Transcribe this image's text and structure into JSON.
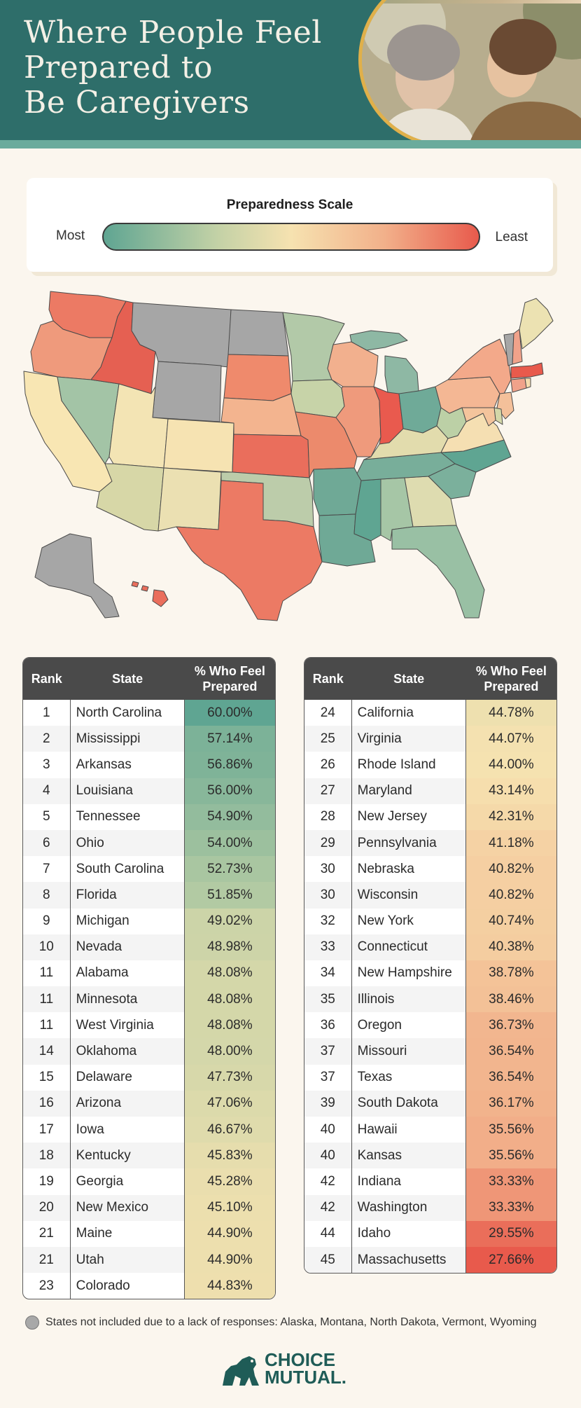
{
  "header": {
    "title_line1": "Where People Feel",
    "title_line2": "Prepared to",
    "title_line3": "Be Caregivers"
  },
  "scale": {
    "title": "Preparedness Scale",
    "most_label": "Most",
    "least_label": "Least"
  },
  "colors": {
    "header_bg": "#2e6e6a",
    "accent": "#6aab9c",
    "scale_most": "#5fa592",
    "scale_mid": "#f6e2b0",
    "scale_least": "#e85a4c",
    "not_included": "#a8a8a8"
  },
  "chart_data": {
    "type": "table",
    "columns": [
      "Rank",
      "State",
      "% Who Feel Prepared"
    ],
    "rows": [
      {
        "rank": "1",
        "state": "North Carolina",
        "pct": "60.00%",
        "value": 60.0
      },
      {
        "rank": "2",
        "state": "Mississippi",
        "pct": "57.14%",
        "value": 57.14
      },
      {
        "rank": "3",
        "state": "Arkansas",
        "pct": "56.86%",
        "value": 56.86
      },
      {
        "rank": "4",
        "state": "Louisiana",
        "pct": "56.00%",
        "value": 56.0
      },
      {
        "rank": "5",
        "state": "Tennessee",
        "pct": "54.90%",
        "value": 54.9
      },
      {
        "rank": "6",
        "state": "Ohio",
        "pct": "54.00%",
        "value": 54.0
      },
      {
        "rank": "7",
        "state": "South Carolina",
        "pct": "52.73%",
        "value": 52.73
      },
      {
        "rank": "8",
        "state": "Florida",
        "pct": "51.85%",
        "value": 51.85
      },
      {
        "rank": "9",
        "state": "Michigan",
        "pct": "49.02%",
        "value": 49.02
      },
      {
        "rank": "10",
        "state": "Nevada",
        "pct": "48.98%",
        "value": 48.98
      },
      {
        "rank": "11",
        "state": "Alabama",
        "pct": "48.08%",
        "value": 48.08
      },
      {
        "rank": "11",
        "state": "Minnesota",
        "pct": "48.08%",
        "value": 48.08
      },
      {
        "rank": "11",
        "state": "West Virginia",
        "pct": "48.08%",
        "value": 48.08
      },
      {
        "rank": "14",
        "state": "Oklahoma",
        "pct": "48.00%",
        "value": 48.0
      },
      {
        "rank": "15",
        "state": "Delaware",
        "pct": "47.73%",
        "value": 47.73
      },
      {
        "rank": "16",
        "state": "Arizona",
        "pct": "47.06%",
        "value": 47.06
      },
      {
        "rank": "17",
        "state": "Iowa",
        "pct": "46.67%",
        "value": 46.67
      },
      {
        "rank": "18",
        "state": "Kentucky",
        "pct": "45.83%",
        "value": 45.83
      },
      {
        "rank": "19",
        "state": "Georgia",
        "pct": "45.28%",
        "value": 45.28
      },
      {
        "rank": "20",
        "state": "New Mexico",
        "pct": "45.10%",
        "value": 45.1
      },
      {
        "rank": "21",
        "state": "Maine",
        "pct": "44.90%",
        "value": 44.9
      },
      {
        "rank": "21",
        "state": "Utah",
        "pct": "44.90%",
        "value": 44.9
      },
      {
        "rank": "23",
        "state": "Colorado",
        "pct": "44.83%",
        "value": 44.83
      },
      {
        "rank": "24",
        "state": "California",
        "pct": "44.78%",
        "value": 44.78
      },
      {
        "rank": "25",
        "state": "Virginia",
        "pct": "44.07%",
        "value": 44.07
      },
      {
        "rank": "26",
        "state": "Rhode Island",
        "pct": "44.00%",
        "value": 44.0
      },
      {
        "rank": "27",
        "state": "Maryland",
        "pct": "43.14%",
        "value": 43.14
      },
      {
        "rank": "28",
        "state": "New Jersey",
        "pct": "42.31%",
        "value": 42.31
      },
      {
        "rank": "29",
        "state": "Pennsylvania",
        "pct": "41.18%",
        "value": 41.18
      },
      {
        "rank": "30",
        "state": "Nebraska",
        "pct": "40.82%",
        "value": 40.82
      },
      {
        "rank": "30",
        "state": "Wisconsin",
        "pct": "40.82%",
        "value": 40.82
      },
      {
        "rank": "32",
        "state": "New York",
        "pct": "40.74%",
        "value": 40.74
      },
      {
        "rank": "33",
        "state": "Connecticut",
        "pct": "40.38%",
        "value": 40.38
      },
      {
        "rank": "34",
        "state": "New Hampshire",
        "pct": "38.78%",
        "value": 38.78
      },
      {
        "rank": "35",
        "state": "Illinois",
        "pct": "38.46%",
        "value": 38.46
      },
      {
        "rank": "36",
        "state": "Oregon",
        "pct": "36.73%",
        "value": 36.73
      },
      {
        "rank": "37",
        "state": "Missouri",
        "pct": "36.54%",
        "value": 36.54
      },
      {
        "rank": "37",
        "state": "Texas",
        "pct": "36.54%",
        "value": 36.54
      },
      {
        "rank": "39",
        "state": "South Dakota",
        "pct": "36.17%",
        "value": 36.17
      },
      {
        "rank": "40",
        "state": "Hawaii",
        "pct": "35.56%",
        "value": 35.56
      },
      {
        "rank": "40",
        "state": "Kansas",
        "pct": "35.56%",
        "value": 35.56
      },
      {
        "rank": "42",
        "state": "Indiana",
        "pct": "33.33%",
        "value": 33.33
      },
      {
        "rank": "42",
        "state": "Washington",
        "pct": "33.33%",
        "value": 33.33
      },
      {
        "rank": "44",
        "state": "Idaho",
        "pct": "29.55%",
        "value": 29.55
      },
      {
        "rank": "45",
        "state": "Massachusetts",
        "pct": "27.66%",
        "value": 27.66
      }
    ],
    "not_included": [
      "Alaska",
      "Montana",
      "North Dakota",
      "Vermont",
      "Wyoming"
    ]
  },
  "footnote": "States not included due to a lack of responses: Alaska, Montana, North Dakota, Vermont, Wyoming",
  "logo": {
    "line1": "CHOICE",
    "line2": "MUTUAL."
  }
}
